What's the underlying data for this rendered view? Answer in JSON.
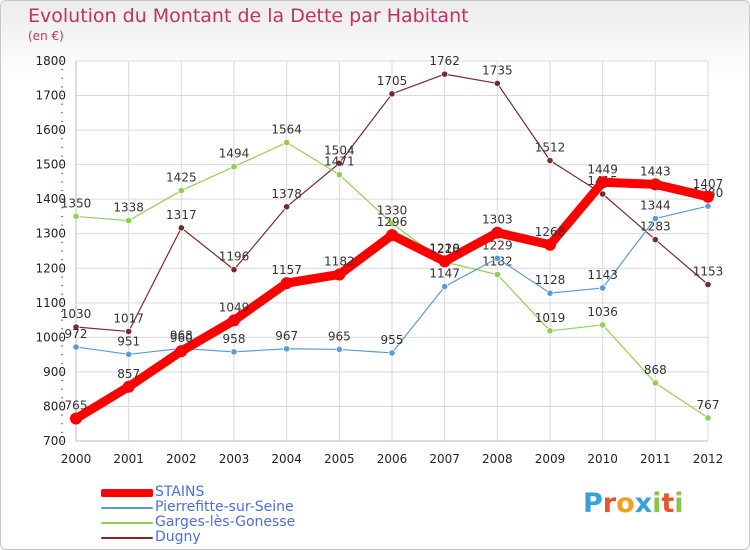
{
  "header": {
    "title": "Evolution du Montant de la Dette par Habitant",
    "unit": "(en €)"
  },
  "brand": {
    "letters": [
      "P",
      "r",
      "o",
      "x",
      "i",
      "t",
      "i"
    ],
    "colors": [
      "#3aa0d8",
      "#e8542e",
      "#f0a020",
      "#3aa0d8",
      "#8bc34a",
      "#e8542e",
      "#8bc34a"
    ]
  },
  "chart_data": {
    "type": "line",
    "title": "Evolution du Montant de la Dette par Habitant",
    "ylabel": "(en €)",
    "xlabel": "",
    "x": [
      2000,
      2001,
      2002,
      2003,
      2004,
      2005,
      2006,
      2007,
      2008,
      2009,
      2010,
      2011,
      2012
    ],
    "ylim": [
      700,
      1800
    ],
    "yticks": [
      700,
      800,
      900,
      1000,
      1100,
      1200,
      1300,
      1400,
      1500,
      1600,
      1700,
      1800
    ],
    "grid": true,
    "legend_position": "bottom-left",
    "series": [
      {
        "name": "Dugny",
        "color": "#7a2a2a",
        "values": [
          1030,
          1017,
          1317,
          1196,
          1378,
          1504,
          1705,
          1762,
          1735,
          1512,
          1415,
          1283,
          1153
        ]
      },
      {
        "name": "Garges-lès-Gonesse",
        "color": "#8fd14f",
        "values": [
          1350,
          1338,
          1425,
          1494,
          1564,
          1471,
          1330,
          1218,
          1182,
          1019,
          1036,
          868,
          767
        ]
      },
      {
        "name": "Pierrefitte-sur-Seine",
        "color": "#5b9bd5",
        "values": [
          972,
          951,
          968,
          958,
          967,
          965,
          955,
          1147,
          1229,
          1128,
          1143,
          1344,
          1380
        ]
      },
      {
        "name": "STAINS",
        "color": "#ff0000",
        "values": [
          765,
          857,
          960,
          1049,
          1157,
          1182,
          1296,
          1220,
          1303,
          1268,
          1449,
          1443,
          1407
        ]
      }
    ],
    "legend_order": [
      "STAINS",
      "Pierrefitte-sur-Seine",
      "Garges-lès-Gonesse",
      "Dugny"
    ]
  }
}
